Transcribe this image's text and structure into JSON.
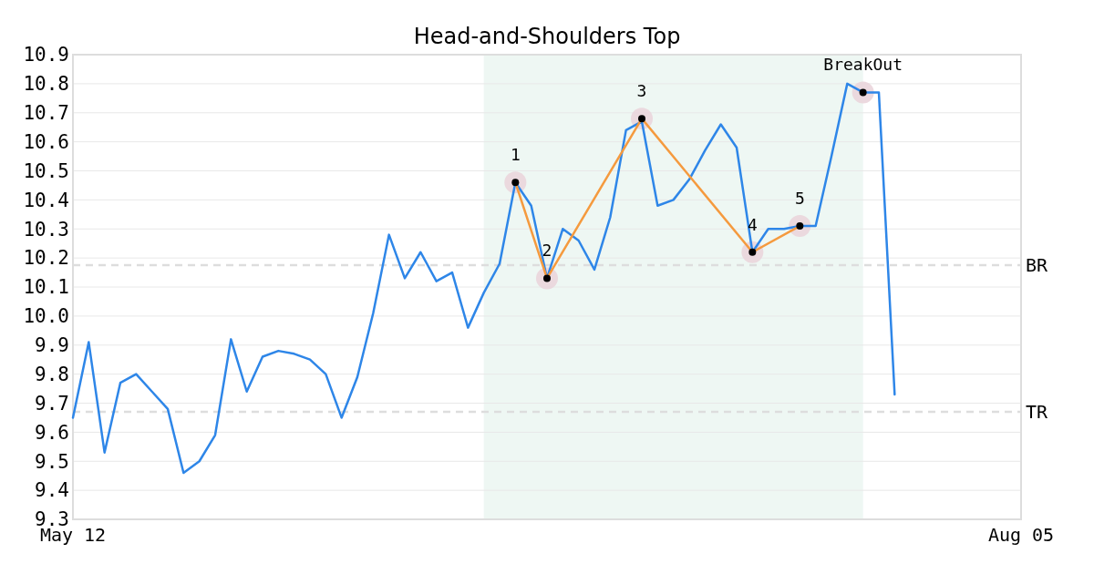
{
  "chart_data": {
    "type": "line",
    "title": "Head-and-Shoulders Top",
    "categories": [
      "May 12",
      null,
      null,
      null,
      null,
      null,
      null,
      null,
      null,
      null,
      null,
      null,
      null,
      null,
      null,
      null,
      null,
      null,
      null,
      null,
      null,
      null,
      null,
      null,
      null,
      null,
      null,
      null,
      null,
      null,
      null,
      null,
      null,
      null,
      null,
      null,
      null,
      null,
      null,
      null,
      null,
      null,
      null,
      null,
      null,
      null,
      null,
      null,
      null,
      null,
      null,
      null,
      null,
      null,
      null,
      null,
      null,
      null,
      null,
      null,
      "Aug 05"
    ],
    "ylim": [
      9.3,
      10.9
    ],
    "yticks": [
      9.3,
      9.4,
      9.5,
      9.6,
      9.7,
      9.8,
      9.9,
      {
        "value": 10.0,
        "label": "10.0"
      },
      10.1,
      10.2,
      10.3,
      10.4,
      10.5,
      10.6,
      10.7,
      10.8,
      10.9
    ],
    "grid": "y",
    "series": [
      {
        "color": "#2e86e8",
        "values": [
          9.65,
          9.91,
          9.53,
          9.77,
          9.8,
          9.74,
          9.68,
          9.46,
          9.5,
          9.59,
          9.92,
          9.74,
          9.86,
          9.88,
          9.87,
          9.85,
          9.8,
          9.65,
          9.79,
          10.01,
          10.28,
          10.13,
          10.22,
          10.12,
          10.15,
          9.96,
          10.08,
          10.18,
          10.46,
          10.38,
          10.13,
          10.3,
          10.26,
          10.16,
          10.34,
          10.64,
          10.67,
          10.38,
          10.4,
          10.47,
          10.57,
          10.66,
          10.58,
          10.22,
          10.3,
          10.3,
          10.31,
          10.31,
          10.55,
          10.8,
          10.77,
          10.77,
          9.73,
          null,
          null,
          null,
          null,
          null,
          null,
          null,
          null
        ]
      },
      {
        "type": "line",
        "color": "#f59a3e",
        "values": [
          null,
          null,
          null,
          null,
          null,
          null,
          null,
          null,
          null,
          null,
          null,
          null,
          null,
          null,
          null,
          null,
          null,
          null,
          null,
          null,
          null,
          null,
          null,
          null,
          null,
          null,
          null,
          null,
          10.46,
          null,
          10.13,
          null,
          null,
          null,
          null,
          null,
          10.68,
          null,
          null,
          null,
          null,
          null,
          null,
          10.22,
          null,
          null,
          10.31,
          null,
          null,
          null,
          null,
          null,
          null,
          null,
          null,
          null,
          null,
          null,
          null,
          null,
          null
        ]
      },
      {
        "type": "scatter",
        "color": "#000000",
        "marker": "circle",
        "values": [
          null,
          null,
          null,
          null,
          null,
          null,
          null,
          null,
          null,
          null,
          null,
          null,
          null,
          null,
          null,
          null,
          null,
          null,
          null,
          null,
          null,
          null,
          null,
          null,
          null,
          null,
          null,
          null,
          10.46,
          null,
          10.13,
          null,
          null,
          null,
          null,
          null,
          10.68,
          null,
          null,
          null,
          null,
          null,
          null,
          10.22,
          null,
          null,
          10.31,
          null,
          null,
          null,
          10.77,
          null,
          null,
          null,
          null,
          null,
          null,
          null,
          null,
          null,
          null
        ]
      }
    ],
    "annotations": [
      {
        "text": "1",
        "y": 10.46
      },
      {
        "text": "2",
        "y": 10.13
      },
      {
        "text": "3",
        "y": 10.68
      },
      {
        "text": "4",
        "y": 10.22
      },
      {
        "text": "5",
        "y": 10.31
      },
      {
        "text": "BreakOut",
        "y": 10.77
      }
    ],
    "ref_lines": [
      {
        "axis": "y",
        "value": 10.175,
        "label": "BR",
        "color": "#dddddd",
        "line_style": "dashed"
      },
      {
        "axis": "y",
        "value": 9.67,
        "label": "TR",
        "color": "#dddddd",
        "line_style": "dashed"
      }
    ]
  }
}
